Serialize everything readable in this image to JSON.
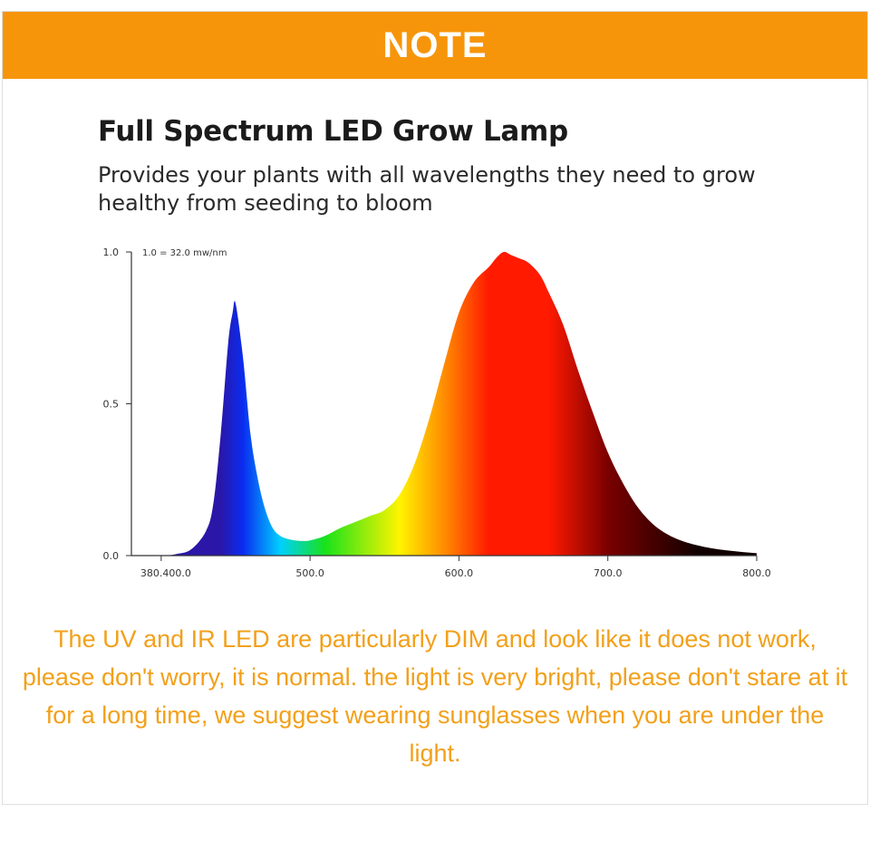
{
  "banner": {
    "title": "NOTE"
  },
  "chart_data": {
    "type": "area",
    "title": "Full Spectrum LED Grow Lamp",
    "subtitle": "Provides your plants with all wavelengths they need to grow healthy from seeding to bloom",
    "annotation": "1.0 = 32.0 mw/nm",
    "xlabel": "",
    "ylabel": "",
    "xlim": [
      380,
      800
    ],
    "ylim": [
      0,
      1.0
    ],
    "x_ticks": [
      {
        "value": 400,
        "label": "380.400.0"
      },
      {
        "value": 500,
        "label": "500.0"
      },
      {
        "value": 600,
        "label": "600.0"
      },
      {
        "value": 700,
        "label": "700.0"
      },
      {
        "value": 800,
        "label": "800.0"
      }
    ],
    "y_ticks": [
      {
        "value": 0,
        "label": "0.0"
      },
      {
        "value": 0.5,
        "label": "0.5"
      },
      {
        "value": 1.0,
        "label": "1.0"
      }
    ],
    "grid": false,
    "series": [
      {
        "x": [
          380,
          400,
          410,
          420,
          430,
          435,
          440,
          445,
          448,
          450,
          455,
          460,
          465,
          470,
          475,
          480,
          485,
          490,
          495,
          500,
          510,
          520,
          530,
          540,
          550,
          560,
          570,
          580,
          590,
          600,
          610,
          620,
          625,
          630,
          635,
          640,
          645,
          650,
          655,
          660,
          670,
          680,
          690,
          700,
          710,
          720,
          730,
          740,
          750,
          760,
          770,
          780,
          790,
          800
        ],
        "y": [
          0,
          0,
          0.005,
          0.02,
          0.08,
          0.17,
          0.4,
          0.7,
          0.8,
          0.83,
          0.65,
          0.4,
          0.25,
          0.15,
          0.09,
          0.065,
          0.055,
          0.05,
          0.048,
          0.05,
          0.065,
          0.09,
          0.11,
          0.13,
          0.15,
          0.2,
          0.3,
          0.45,
          0.63,
          0.8,
          0.9,
          0.95,
          0.98,
          1.0,
          0.99,
          0.98,
          0.97,
          0.95,
          0.92,
          0.87,
          0.76,
          0.61,
          0.47,
          0.34,
          0.24,
          0.16,
          0.105,
          0.07,
          0.048,
          0.034,
          0.024,
          0.017,
          0.012,
          0.008
        ]
      }
    ],
    "colors": {
      "violet": "#2a17a8",
      "blue": "#0a2cf0",
      "cyan": "#00d0ff",
      "green": "#18e21a",
      "yellow": "#fff400",
      "orange": "#ff8c00",
      "red": "#ff1a00",
      "dark_red": "#7a0000",
      "near_black": "#120000"
    }
  },
  "note": {
    "text": "The UV and IR LED are particularly DIM and look like it does not work, please don't worry, it is normal. the light is very bright, please don't stare at it for a long time, we suggest wearing sunglasses when you are under the light."
  },
  "theme": {
    "accent": "#f7950a",
    "note_color": "#f2a01a"
  }
}
